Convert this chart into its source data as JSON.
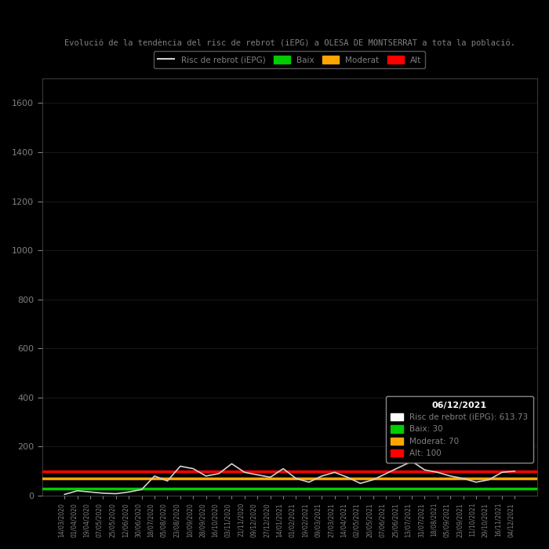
{
  "title": "Evolució de la tendència del risc de rebrot (iEPG) a OLESA DE MONTSERRAT a tota la població.",
  "background_color": "#000000",
  "text_color": "#808080",
  "ylim": [
    0,
    1700
  ],
  "yticks": [
    0,
    200,
    400,
    600,
    800,
    1000,
    1200,
    1400,
    1600
  ],
  "line_color": "#d3d3d3",
  "last_annotation_date": "06/12/2021",
  "last_value": 613.73,
  "baix_value": 30,
  "moderat_value": 70,
  "alt_value": 100,
  "baix_color": "#00cc00",
  "moderat_color": "#ffa500",
  "alt_color": "#ff0000",
  "legend_baix": "Baix",
  "legend_moderat": "Moderat",
  "legend_alt": "Alt",
  "legend_title": "Risc de rebrot (iEPG)",
  "dates": [
    "14/03/2020",
    "01/04/2020",
    "19/04/2020",
    "07/05/2020",
    "25/05/2020",
    "12/06/2020",
    "30/06/2020",
    "18/07/2020",
    "05/08/2020",
    "23/08/2020",
    "10/09/2020",
    "28/09/2020",
    "16/10/2020",
    "03/11/2020",
    "21/11/2020",
    "09/12/2020",
    "27/12/2020",
    "14/01/2021",
    "01/02/2021",
    "19/02/2021",
    "09/03/2021",
    "27/03/2021",
    "14/04/2021",
    "02/05/2021",
    "20/05/2021",
    "07/06/2021",
    "25/06/2021",
    "13/07/2021",
    "31/07/2021",
    "18/08/2021",
    "05/09/2021",
    "23/09/2021",
    "11/10/2021",
    "29/10/2021",
    "16/11/2021",
    "04/12/2021"
  ],
  "iepg_values": [
    5,
    20,
    15,
    10,
    8,
    15,
    25,
    80,
    60,
    120,
    110,
    80,
    90,
    130,
    95,
    85,
    75,
    110,
    70,
    55,
    80,
    95,
    75,
    50,
    65,
    90,
    115,
    140,
    105,
    95,
    80,
    70,
    55,
    65,
    95,
    100
  ]
}
